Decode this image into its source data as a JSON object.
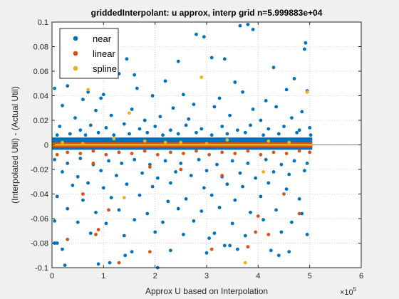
{
  "chart_data": {
    "type": "scatter",
    "title": "griddedInterpolant: u approx, interp grid n=5.999883e+04",
    "xlabel": "Approx U based on Interpolation",
    "ylabel": "(Interpolated Util) - (Actual Util)",
    "x_exponent_label": "×10",
    "x_exponent_power": "5",
    "xlim": [
      0,
      6
    ],
    "ylim": [
      -0.1,
      0.1
    ],
    "xticks": [
      0,
      1,
      2,
      3,
      4,
      5,
      6
    ],
    "xtick_labels": [
      "0",
      "1",
      "2",
      "3",
      "4",
      "5",
      "6"
    ],
    "yticks": [
      -0.1,
      -0.08,
      -0.06,
      -0.04,
      -0.02,
      0,
      0.02,
      0.04,
      0.06,
      0.08,
      0.1
    ],
    "ytick_labels": [
      "-0.1",
      "-0.08",
      "-0.06",
      "-0.04",
      "-0.02",
      "0",
      "0.02",
      "0.04",
      "0.06",
      "0.08",
      "0.1"
    ],
    "grid": "dotted",
    "legend_position": "top-left",
    "series": [
      {
        "name": "near",
        "color": "#0072BD",
        "points": [
          [
            0.05,
            -0.08
          ],
          [
            0.1,
            -0.08
          ],
          [
            0.25,
            -0.098
          ],
          [
            0.9,
            -0.097
          ],
          [
            1.12,
            -0.096
          ],
          [
            1.42,
            -0.09
          ],
          [
            1.45,
            0.07
          ],
          [
            2.05,
            -0.1
          ],
          [
            2.45,
            0.068
          ],
          [
            3.1,
            0.071
          ],
          [
            3.05,
            -0.076
          ],
          [
            3.35,
            -0.082
          ],
          [
            3.45,
            -0.082
          ],
          [
            3.8,
            0.098
          ],
          [
            3.65,
            0.097
          ],
          [
            3.9,
            0.094
          ],
          [
            4.25,
            -0.086
          ],
          [
            4.4,
            -0.09
          ],
          [
            4.92,
            0.083
          ],
          [
            4.9,
            0.078
          ],
          [
            1.25,
            0.09
          ],
          [
            2.8,
            0.09
          ],
          [
            0.4,
            0.062
          ],
          [
            1.6,
            0.057
          ],
          [
            2.95,
            0.088
          ],
          [
            3.35,
            0.07
          ],
          [
            4.3,
            0.063
          ],
          [
            0.3,
            0.048
          ],
          [
            0.05,
            0.046
          ],
          [
            0.7,
            0.043
          ],
          [
            1.0,
            0.041
          ],
          [
            1.3,
            0.058
          ],
          [
            2.2,
            0.052
          ],
          [
            3.55,
            0.051
          ],
          [
            4.7,
            0.054
          ],
          [
            4.95,
            0.044
          ],
          [
            0.6,
            0.037
          ],
          [
            0.95,
            0.038
          ],
          [
            1.65,
            0.046
          ],
          [
            1.95,
            0.04
          ],
          [
            2.55,
            0.041
          ],
          [
            3.25,
            0.038
          ],
          [
            3.7,
            0.043
          ],
          [
            4.15,
            0.036
          ],
          [
            4.55,
            0.045
          ],
          [
            0.2,
            0.032
          ],
          [
            0.85,
            0.028
          ],
          [
            1.55,
            0.029
          ],
          [
            2.35,
            0.03
          ],
          [
            2.75,
            0.033
          ],
          [
            3.15,
            0.031
          ],
          [
            3.9,
            0.029
          ],
          [
            4.35,
            0.031
          ],
          [
            4.85,
            0.027
          ],
          [
            0.45,
            0.022
          ],
          [
            1.15,
            0.024
          ],
          [
            1.8,
            0.02
          ],
          [
            2.1,
            0.023
          ],
          [
            2.65,
            0.021
          ],
          [
            3.45,
            0.024
          ],
          [
            4.05,
            0.02
          ],
          [
            4.65,
            0.022
          ],
          [
            0.15,
            0.015
          ],
          [
            0.55,
            0.012
          ],
          [
            0.75,
            0.016
          ],
          [
            1.05,
            0.014
          ],
          [
            1.4,
            0.017
          ],
          [
            1.7,
            0.013
          ],
          [
            2.0,
            0.015
          ],
          [
            2.3,
            0.012
          ],
          [
            2.6,
            0.016
          ],
          [
            2.9,
            0.013
          ],
          [
            3.3,
            0.015
          ],
          [
            3.6,
            0.012
          ],
          [
            3.85,
            0.016
          ],
          [
            4.2,
            0.013
          ],
          [
            4.5,
            0.015
          ],
          [
            4.8,
            0.012
          ],
          [
            5.0,
            0.014
          ],
          [
            0.1,
            0.008
          ],
          [
            0.35,
            0.009
          ],
          [
            0.65,
            0.008
          ],
          [
            0.9,
            0.01
          ],
          [
            1.2,
            0.008
          ],
          [
            1.5,
            0.009
          ],
          [
            1.85,
            0.01
          ],
          [
            2.15,
            0.008
          ],
          [
            2.45,
            0.009
          ],
          [
            2.8,
            0.01
          ],
          [
            3.1,
            0.008
          ],
          [
            3.4,
            0.009
          ],
          [
            3.75,
            0.01
          ],
          [
            4.1,
            0.008
          ],
          [
            4.4,
            0.009
          ],
          [
            4.75,
            0.01
          ],
          [
            5.02,
            0.008
          ],
          [
            0.05,
            -0.012
          ],
          [
            0.3,
            -0.015
          ],
          [
            0.55,
            -0.011
          ],
          [
            0.8,
            -0.016
          ],
          [
            1.1,
            -0.013
          ],
          [
            1.35,
            -0.015
          ],
          [
            1.6,
            -0.012
          ],
          [
            1.9,
            -0.016
          ],
          [
            2.2,
            -0.013
          ],
          [
            2.5,
            -0.015
          ],
          [
            2.85,
            -0.012
          ],
          [
            3.2,
            -0.016
          ],
          [
            3.5,
            -0.013
          ],
          [
            3.8,
            -0.015
          ],
          [
            4.15,
            -0.012
          ],
          [
            4.45,
            -0.016
          ],
          [
            4.7,
            -0.013
          ],
          [
            4.95,
            -0.015
          ],
          [
            0.2,
            -0.022
          ],
          [
            0.5,
            -0.026
          ],
          [
            0.95,
            -0.021
          ],
          [
            1.25,
            -0.025
          ],
          [
            1.75,
            -0.023
          ],
          [
            2.05,
            -0.027
          ],
          [
            2.4,
            -0.022
          ],
          [
            2.7,
            -0.025
          ],
          [
            3.0,
            -0.021
          ],
          [
            3.3,
            -0.026
          ],
          [
            3.65,
            -0.023
          ],
          [
            3.95,
            -0.027
          ],
          [
            4.3,
            -0.022
          ],
          [
            4.6,
            -0.024
          ],
          [
            4.9,
            -0.021
          ],
          [
            0.4,
            -0.033
          ],
          [
            0.7,
            -0.031
          ],
          [
            1.0,
            -0.035
          ],
          [
            1.45,
            -0.032
          ],
          [
            1.95,
            -0.034
          ],
          [
            2.3,
            -0.031
          ],
          [
            2.95,
            -0.035
          ],
          [
            3.4,
            -0.032
          ],
          [
            3.7,
            -0.034
          ],
          [
            4.2,
            -0.031
          ],
          [
            4.55,
            -0.036
          ],
          [
            0.1,
            -0.042
          ],
          [
            0.6,
            -0.045
          ],
          [
            1.15,
            -0.043
          ],
          [
            1.7,
            -0.041
          ],
          [
            2.25,
            -0.046
          ],
          [
            2.6,
            -0.044
          ],
          [
            3.1,
            -0.041
          ],
          [
            3.55,
            -0.045
          ],
          [
            4.05,
            -0.042
          ],
          [
            4.8,
            -0.044
          ],
          [
            0.3,
            -0.052
          ],
          [
            0.85,
            -0.055
          ],
          [
            1.3,
            -0.053
          ],
          [
            1.85,
            -0.056
          ],
          [
            2.45,
            -0.052
          ],
          [
            2.9,
            -0.054
          ],
          [
            3.25,
            -0.051
          ],
          [
            3.85,
            -0.055
          ],
          [
            4.35,
            -0.053
          ],
          [
            4.85,
            -0.056
          ],
          [
            0.05,
            -0.062
          ],
          [
            0.5,
            -0.063
          ],
          [
            1.05,
            -0.064
          ],
          [
            1.6,
            -0.061
          ],
          [
            2.15,
            -0.063
          ],
          [
            2.75,
            -0.062
          ],
          [
            3.5,
            -0.064
          ],
          [
            4.1,
            -0.061
          ],
          [
            4.65,
            -0.063
          ],
          [
            0.75,
            -0.072
          ],
          [
            1.4,
            -0.074
          ],
          [
            2.0,
            -0.071
          ],
          [
            2.55,
            -0.073
          ],
          [
            3.15,
            -0.072
          ],
          [
            3.75,
            -0.074
          ],
          [
            4.45,
            -0.071
          ],
          [
            4.95,
            -0.073
          ],
          [
            0.2,
            -0.085
          ],
          [
            1.55,
            -0.087
          ],
          [
            2.3,
            -0.086
          ],
          [
            3.0,
            -0.088
          ],
          [
            3.6,
            -0.085
          ],
          [
            4.6,
            -0.087
          ]
        ]
      },
      {
        "name": "linear",
        "color": "#D95319",
        "points": [
          [
            0.3,
            -0.077
          ],
          [
            1.9,
            -0.087
          ],
          [
            1.3,
            -0.096
          ],
          [
            3.1,
            -0.085
          ],
          [
            3.8,
            -0.083
          ],
          [
            0.85,
            -0.073
          ],
          [
            0.9,
            -0.069
          ],
          [
            3.95,
            -0.071
          ],
          [
            4.2,
            -0.073
          ],
          [
            4.0,
            -0.058
          ],
          [
            4.8,
            -0.056
          ],
          [
            0.6,
            -0.04
          ],
          [
            4.5,
            -0.04
          ],
          [
            1.1,
            -0.053
          ],
          [
            1.9,
            -0.018
          ],
          [
            0.8,
            -0.015
          ],
          [
            2.5,
            -0.02
          ],
          [
            3.3,
            -0.025
          ],
          [
            0.1,
            -0.008
          ],
          [
            0.3,
            -0.006
          ],
          [
            0.55,
            -0.007
          ],
          [
            0.8,
            -0.005
          ],
          [
            1.05,
            -0.008
          ],
          [
            1.3,
            -0.006
          ],
          [
            1.55,
            -0.007
          ],
          [
            1.8,
            -0.005
          ],
          [
            2.05,
            -0.008
          ],
          [
            2.3,
            -0.006
          ],
          [
            2.55,
            -0.007
          ],
          [
            2.8,
            -0.005
          ],
          [
            3.05,
            -0.008
          ],
          [
            3.3,
            -0.006
          ],
          [
            3.55,
            -0.007
          ],
          [
            3.8,
            -0.005
          ],
          [
            4.05,
            -0.008
          ],
          [
            4.3,
            -0.006
          ],
          [
            4.55,
            -0.007
          ],
          [
            4.8,
            -0.005
          ],
          [
            5.0,
            -0.006
          ]
        ]
      },
      {
        "name": "spline",
        "color": "#EDB120",
        "points": [
          [
            2.9,
            0.055
          ],
          [
            0.7,
            0.045
          ],
          [
            4.95,
            0.043
          ],
          [
            1.4,
            -0.043
          ],
          [
            3.75,
            -0.096
          ],
          [
            1.5,
            0.026
          ],
          [
            4.1,
            -0.022
          ],
          [
            0.2,
            0.002
          ],
          [
            1.2,
            0.005
          ],
          [
            2.5,
            0.002
          ],
          [
            3.4,
            0.004
          ],
          [
            4.6,
            0.002
          ],
          [
            1.8,
            0.003
          ],
          [
            0.6,
            0.001
          ],
          [
            2.2,
            0.002
          ],
          [
            3.0,
            0.001
          ],
          [
            4.2,
            0.003
          ]
        ]
      }
    ]
  }
}
